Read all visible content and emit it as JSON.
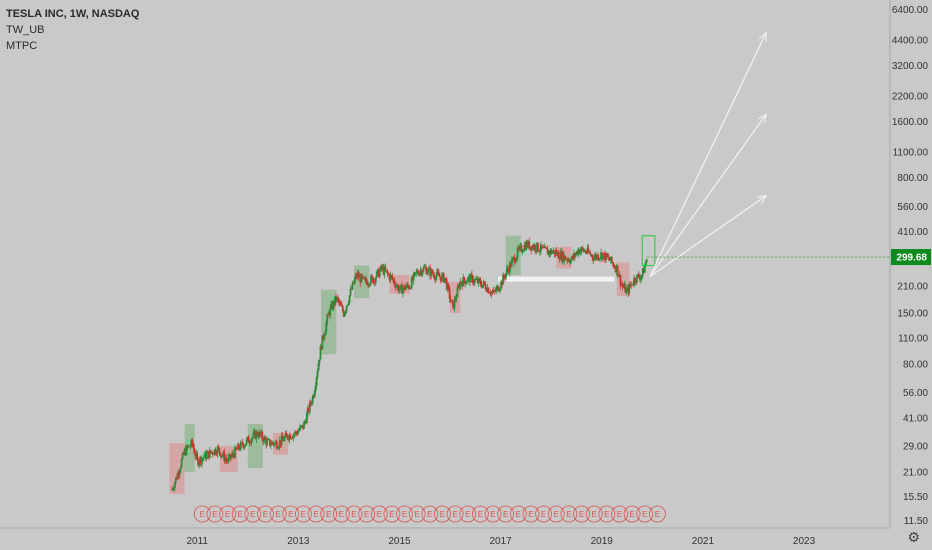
{
  "legend": {
    "symbol_line": "TESLA INC, 1W, NASDAQ",
    "indicator_1": "TW_UB",
    "indicator_2": "MTPC"
  },
  "colors": {
    "background": "#c9c9c9",
    "up_candle": "#2e8b3a",
    "down_candle": "#c0392b",
    "up_box": "#8fb58f",
    "down_box": "#d89a9a",
    "price_tag": "#0f8a1f",
    "support_line": "#f2f2f2",
    "arrow": "#f5f5f5",
    "earnings": "#d9534f"
  },
  "settings_icon": "gear-icon",
  "chart_data": {
    "type": "candlestick",
    "y_scale": "log",
    "y_ticks": [
      11.5,
      15.5,
      21,
      29,
      41,
      56,
      80,
      110,
      150,
      210,
      299.68,
      410,
      560,
      800,
      1100,
      1600,
      2200,
      3200,
      4400,
      6400
    ],
    "y_tick_labels": [
      "11.50",
      "15.50",
      "21.00",
      "29.00",
      "41.00",
      "56.00",
      "80.00",
      "110.00",
      "150.00",
      "210.00",
      "",
      "410.00",
      "560.00",
      "800.00",
      "1100.00",
      "1600.00",
      "2200.00",
      "3200.00",
      "4400.00",
      "6400.00"
    ],
    "ylim": [
      10.5,
      7200
    ],
    "x_tick_labels": [
      "2011",
      "2013",
      "2015",
      "2017",
      "2019",
      "2021",
      "2023"
    ],
    "x_ticks": [
      2011,
      2013,
      2015,
      2017,
      2019,
      2021,
      2023
    ],
    "xlim": [
      2007.1,
      2024.7
    ],
    "last_price": 299.68,
    "last_price_label": "299.68",
    "path": [
      [
        2010.5,
        17
      ],
      [
        2010.6,
        20
      ],
      [
        2010.75,
        27
      ],
      [
        2010.9,
        30
      ],
      [
        2011.0,
        24
      ],
      [
        2011.2,
        26
      ],
      [
        2011.4,
        28
      ],
      [
        2011.6,
        24
      ],
      [
        2011.8,
        28
      ],
      [
        2012.0,
        31
      ],
      [
        2012.2,
        34
      ],
      [
        2012.4,
        30
      ],
      [
        2012.6,
        30
      ],
      [
        2012.8,
        33
      ],
      [
        2012.95,
        34
      ],
      [
        2013.1,
        37
      ],
      [
        2013.3,
        55
      ],
      [
        2013.45,
        100
      ],
      [
        2013.6,
        150
      ],
      [
        2013.75,
        180
      ],
      [
        2013.9,
        150
      ],
      [
        2014.05,
        200
      ],
      [
        2014.15,
        240
      ],
      [
        2014.3,
        220
      ],
      [
        2014.5,
        230
      ],
      [
        2014.65,
        260
      ],
      [
        2014.85,
        230
      ],
      [
        2015.0,
        200
      ],
      [
        2015.2,
        210
      ],
      [
        2015.35,
        250
      ],
      [
        2015.5,
        260
      ],
      [
        2015.7,
        240
      ],
      [
        2015.9,
        230
      ],
      [
        2016.05,
        160
      ],
      [
        2016.2,
        220
      ],
      [
        2016.4,
        230
      ],
      [
        2016.55,
        220
      ],
      [
        2016.7,
        210
      ],
      [
        2016.85,
        190
      ],
      [
        2017.0,
        215
      ],
      [
        2017.15,
        260
      ],
      [
        2017.35,
        320
      ],
      [
        2017.5,
        350
      ],
      [
        2017.7,
        340
      ],
      [
        2017.9,
        320
      ],
      [
        2018.05,
        320
      ],
      [
        2018.25,
        300
      ],
      [
        2018.4,
        290
      ],
      [
        2018.55,
        330
      ],
      [
        2018.7,
        320
      ],
      [
        2018.85,
        300
      ],
      [
        2019.0,
        310
      ],
      [
        2019.15,
        290
      ],
      [
        2019.3,
        260
      ],
      [
        2019.4,
        210
      ],
      [
        2019.5,
        195
      ],
      [
        2019.65,
        230
      ],
      [
        2019.8,
        240
      ],
      [
        2019.9,
        299.68
      ]
    ],
    "boxes": [
      {
        "x0": 2010.45,
        "x1": 2010.75,
        "lo": 16,
        "hi": 30,
        "dir": "down"
      },
      {
        "x0": 2010.75,
        "x1": 2010.95,
        "lo": 21,
        "hi": 38,
        "dir": "up"
      },
      {
        "x0": 2011.45,
        "x1": 2011.8,
        "lo": 21,
        "hi": 29,
        "dir": "down"
      },
      {
        "x0": 2012.0,
        "x1": 2012.3,
        "lo": 22,
        "hi": 38,
        "dir": "up"
      },
      {
        "x0": 2012.5,
        "x1": 2012.8,
        "lo": 26,
        "hi": 34,
        "dir": "down"
      },
      {
        "x0": 2013.45,
        "x1": 2013.75,
        "lo": 90,
        "hi": 200,
        "dir": "up"
      },
      {
        "x0": 2014.1,
        "x1": 2014.4,
        "lo": 180,
        "hi": 270,
        "dir": "up"
      },
      {
        "x0": 2014.8,
        "x1": 2015.2,
        "lo": 190,
        "hi": 240,
        "dir": "down"
      },
      {
        "x0": 2016.0,
        "x1": 2016.2,
        "lo": 150,
        "hi": 220,
        "dir": "down"
      },
      {
        "x0": 2017.1,
        "x1": 2017.4,
        "lo": 240,
        "hi": 390,
        "dir": "up"
      },
      {
        "x0": 2018.1,
        "x1": 2018.4,
        "lo": 260,
        "hi": 340,
        "dir": "down"
      },
      {
        "x0": 2019.3,
        "x1": 2019.55,
        "lo": 185,
        "hi": 280,
        "dir": "down"
      }
    ],
    "support_line": {
      "x0": 2016.95,
      "x1": 2019.25,
      "y": 228
    },
    "target_box": {
      "x0": 2019.8,
      "x1": 2020.05,
      "lo": 270,
      "hi": 390
    },
    "projection_arrows": [
      {
        "from_x": 2019.95,
        "from_y": 235,
        "to_x": 2022.25,
        "to_y": 4800
      },
      {
        "from_x": 2019.95,
        "from_y": 235,
        "to_x": 2022.25,
        "to_y": 1750
      },
      {
        "from_x": 2019.95,
        "from_y": 235,
        "to_x": 2022.25,
        "to_y": 640
      }
    ],
    "earnings": {
      "symbol": "E",
      "x": [
        2011.1,
        2011.35,
        2011.6,
        2011.85,
        2012.1,
        2012.35,
        2012.6,
        2012.85,
        2013.1,
        2013.35,
        2013.6,
        2013.85,
        2014.1,
        2014.35,
        2014.6,
        2014.85,
        2015.1,
        2015.35,
        2015.6,
        2015.85,
        2016.1,
        2016.35,
        2016.6,
        2016.85,
        2017.1,
        2017.35,
        2017.6,
        2017.85,
        2018.1,
        2018.35,
        2018.6,
        2018.85,
        2019.1,
        2019.35,
        2019.6,
        2019.85,
        2020.1
      ]
    }
  }
}
